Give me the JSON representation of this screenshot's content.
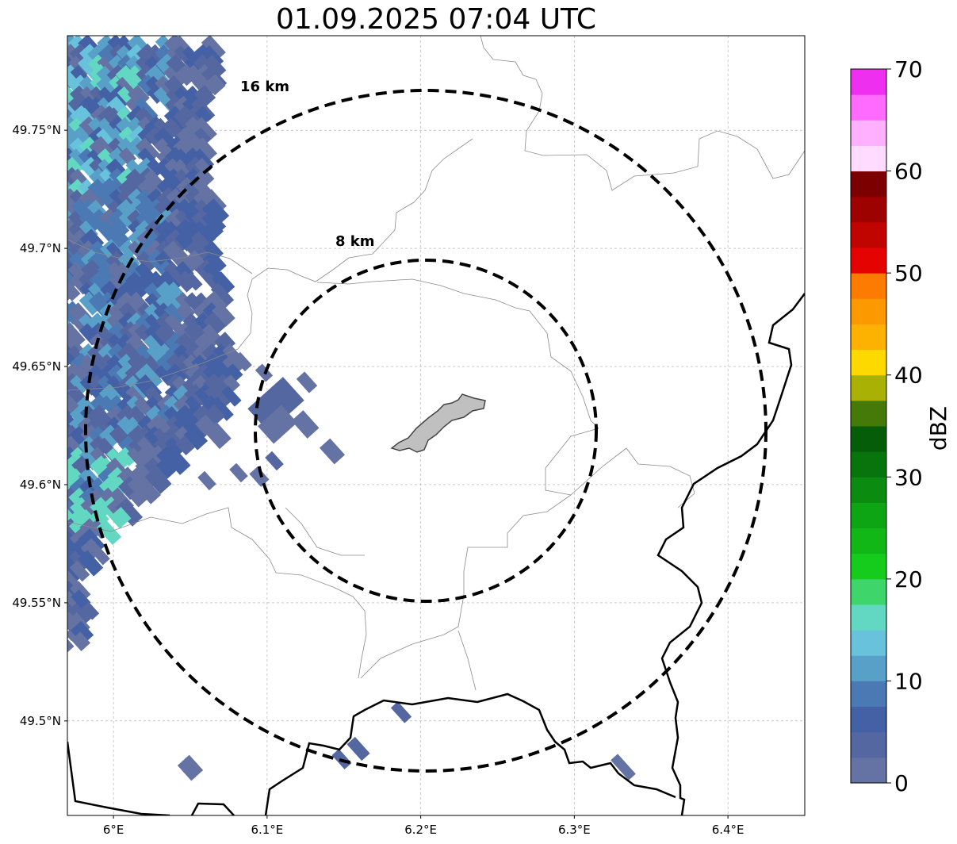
{
  "title": "01.09.2025 07:04 UTC",
  "map": {
    "lon_range": [
      5.97,
      6.45
    ],
    "lat_range": [
      49.46,
      49.79
    ],
    "grid": true,
    "lon_ticks": [
      {
        "value": 6.0,
        "label": "6°E"
      },
      {
        "value": 6.1,
        "label": "6.1°E"
      },
      {
        "value": 6.2,
        "label": "6.2°E"
      },
      {
        "value": 6.3,
        "label": "6.3°E"
      },
      {
        "value": 6.4,
        "label": "6.4°E"
      }
    ],
    "lat_ticks": [
      {
        "value": 49.5,
        "label": "49.5°N"
      },
      {
        "value": 49.55,
        "label": "49.55°N"
      },
      {
        "value": 49.6,
        "label": "49.6°N"
      },
      {
        "value": 49.65,
        "label": "49.65°N"
      },
      {
        "value": 49.7,
        "label": "49.7°N"
      },
      {
        "value": 49.75,
        "label": "49.75°N"
      }
    ],
    "center": {
      "lon": 6.2,
      "lat": 49.623
    },
    "range_rings": [
      {
        "radius_km": 8,
        "label": "8 km"
      },
      {
        "radius_km": 16,
        "label": "16 km"
      }
    ],
    "city_color": "#c0c0c0",
    "border_color": "#000000"
  },
  "colorbar": {
    "label": "dBZ",
    "min": 0,
    "max": 70,
    "step": 2.5,
    "tick_labels": [
      "0",
      "10",
      "20",
      "30",
      "40",
      "50",
      "60",
      "70"
    ],
    "colors": [
      "#6473a4",
      "#5467a1",
      "#4561a5",
      "#4a79b4",
      "#59a0c9",
      "#68c2dc",
      "#62d8c3",
      "#3ed66a",
      "#15cb1b",
      "#11b715",
      "#0ea514",
      "#0b8c10",
      "#08750c",
      "#055c09",
      "#457a09",
      "#aab105",
      "#fdd900",
      "#fdb100",
      "#fd9900",
      "#fd7c00",
      "#e40300",
      "#c00400",
      "#9e0200",
      "#7c0000",
      "#ffdcff",
      "#ffb0ff",
      "#ff6aff",
      "#ef2fef"
    ]
  }
}
